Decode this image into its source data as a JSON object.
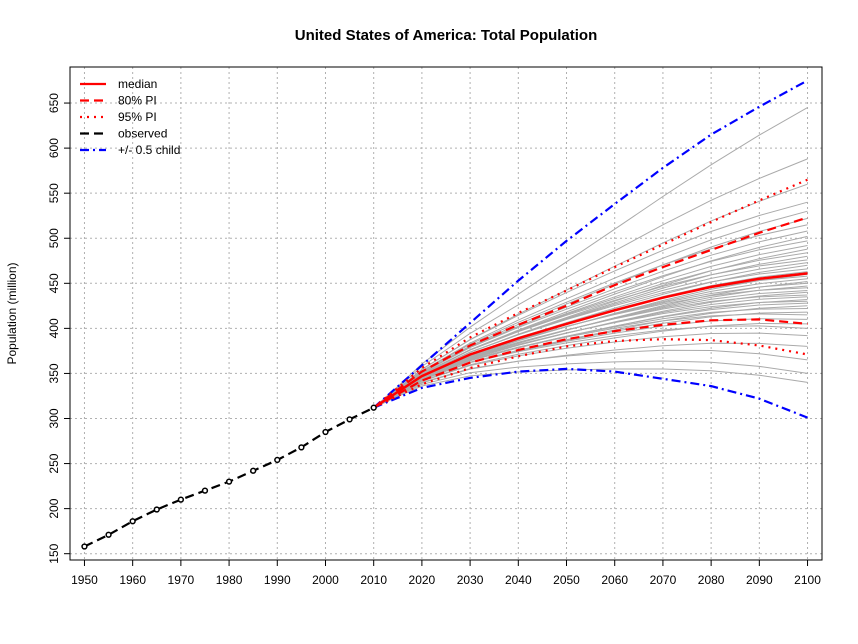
{
  "chart_data": {
    "type": "line",
    "title": "United States of America: Total Population",
    "xlabel": "",
    "ylabel": "Population (million)",
    "xlim": [
      1947,
      2103
    ],
    "ylim": [
      143,
      690
    ],
    "x_ticks": [
      1950,
      1960,
      1970,
      1980,
      1990,
      2000,
      2010,
      2020,
      2030,
      2040,
      2050,
      2060,
      2070,
      2080,
      2090,
      2100
    ],
    "y_ticks": [
      150,
      200,
      250,
      300,
      350,
      400,
      450,
      500,
      550,
      600,
      650
    ],
    "grid": true,
    "legend_position": "top-left",
    "colors": {
      "median": "#ff0000",
      "pi80": "#ff0000",
      "pi95": "#ff0000",
      "observed": "#000000",
      "child": "#0000ff",
      "trajectories": "#aaaaaa",
      "grid": "#b0b0b0"
    },
    "legend": [
      {
        "label": "median",
        "color": "#ff0000",
        "style": "solid"
      },
      {
        "label": "80% PI",
        "color": "#ff0000",
        "style": "dashed"
      },
      {
        "label": "95% PI",
        "color": "#ff0000",
        "style": "dotted"
      },
      {
        "label": "observed",
        "color": "#000000",
        "style": "dashed"
      },
      {
        "label": "+/- 0.5 child",
        "color": "#0000ff",
        "style": "dashdot"
      }
    ],
    "observed": {
      "x": [
        1950,
        1955,
        1960,
        1965,
        1970,
        1975,
        1980,
        1985,
        1990,
        1995,
        2000,
        2005,
        2010
      ],
      "y": [
        158,
        171,
        186,
        199,
        210,
        220,
        230,
        242,
        254,
        268,
        285,
        299,
        312
      ]
    },
    "projection_x": [
      2010,
      2020,
      2030,
      2040,
      2050,
      2060,
      2070,
      2080,
      2090,
      2100
    ],
    "series": [
      {
        "name": "median",
        "values": [
          312,
          347,
          371,
          389,
          405,
          420,
          434,
          446,
          455,
          461
        ]
      },
      {
        "name": "80% PI",
        "values": [
          312,
          352,
          381,
          404,
          425,
          448,
          468,
          487,
          506,
          523
        ]
      },
      {
        "name": "80% PI",
        "values": [
          312,
          342,
          362,
          376,
          388,
          397,
          404,
          409,
          410,
          405
        ]
      },
      {
        "name": "95% PI",
        "values": [
          312,
          356,
          390,
          417,
          442,
          468,
          493,
          518,
          542,
          565
        ]
      },
      {
        "name": "95% PI",
        "values": [
          312,
          338,
          356,
          369,
          380,
          386,
          388,
          387,
          381,
          371
        ]
      },
      {
        "name": "+/- 0.5 child",
        "values": [
          312,
          359,
          406,
          453,
          497,
          538,
          578,
          615,
          646,
          675
        ]
      },
      {
        "name": "+/- 0.5 child",
        "values": [
          312,
          334,
          345,
          352,
          355,
          352,
          344,
          336,
          322,
          301
        ]
      }
    ],
    "trajectory_endpoints_2100": [
      340,
      350,
      365,
      380,
      392,
      400,
      405,
      410,
      415,
      418,
      422,
      425,
      428,
      430,
      432,
      435,
      437,
      440,
      442,
      445,
      447,
      450,
      452,
      455,
      458,
      460,
      463,
      466,
      470,
      473,
      476,
      480,
      484,
      488,
      492,
      497,
      502,
      508,
      515,
      522,
      530,
      540,
      560,
      588,
      645
    ]
  }
}
